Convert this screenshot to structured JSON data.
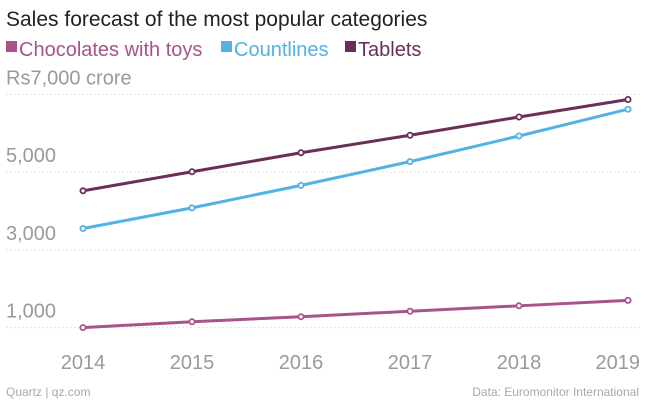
{
  "chart_data": {
    "type": "line",
    "title": "Sales forecast of the most popular categories",
    "x": [
      2014,
      2015,
      2016,
      2017,
      2018,
      2019
    ],
    "x_tick_labels": [
      "2014",
      "2015",
      "2016",
      "2017",
      "2018",
      "2019"
    ],
    "y_tick_values": [
      1000,
      3000,
      5000,
      7000
    ],
    "y_tick_labels": [
      "1,000",
      "3,000",
      "5,000",
      "Rs7,000 crore"
    ],
    "ylim": [
      500,
      7500
    ],
    "grid": true,
    "legend_position": "top-left",
    "series": [
      {
        "name": "Chocolates with toys",
        "color": "#a8538a",
        "values": [
          1000,
          1150,
          1280,
          1420,
          1560,
          1700
        ]
      },
      {
        "name": "Countlines",
        "color": "#51b2e3",
        "values": [
          3550,
          4080,
          4660,
          5270,
          5930,
          6620
        ]
      },
      {
        "name": "Tablets",
        "color": "#6b2e58",
        "values": [
          4520,
          5010,
          5500,
          5950,
          6420,
          6870
        ]
      }
    ],
    "source_left": "Quartz | qz.com",
    "source_right": "Data: Euromonitor International"
  }
}
